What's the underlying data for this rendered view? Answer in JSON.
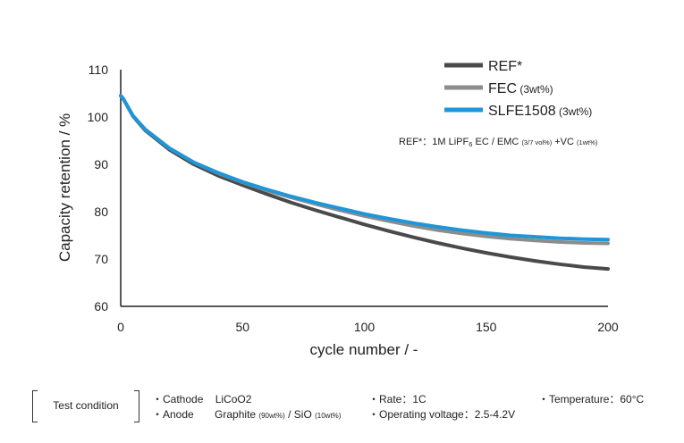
{
  "chart_data": {
    "type": "line",
    "xlabel": "cycle number / -",
    "ylabel": "Capacity retention / %",
    "xlim": [
      0,
      200
    ],
    "ylim": [
      60,
      110
    ],
    "xticks": [
      "0",
      "50",
      "100",
      "150",
      "200"
    ],
    "yticks": [
      "60",
      "70",
      "80",
      "90",
      "100",
      "110"
    ],
    "grid": false,
    "legend_position": "top-right",
    "series": [
      {
        "name": "REF*",
        "name_suffix": "",
        "color": "#4a4a4a",
        "x": [
          0,
          1,
          5,
          10,
          20,
          30,
          40,
          50,
          60,
          70,
          80,
          90,
          100,
          110,
          120,
          130,
          140,
          150,
          160,
          170,
          180,
          190,
          200
        ],
        "y": [
          104.5,
          103.9,
          100.2,
          97.2,
          93.1,
          90.0,
          87.6,
          85.6,
          83.7,
          81.9,
          80.3,
          78.8,
          77.3,
          75.9,
          74.6,
          73.4,
          72.3,
          71.3,
          70.4,
          69.6,
          68.9,
          68.3,
          67.9
        ]
      },
      {
        "name": "FEC",
        "name_suffix": "(3wt%)",
        "color": "#8c8c8c",
        "x": [
          0,
          1,
          5,
          10,
          20,
          30,
          40,
          50,
          60,
          70,
          80,
          90,
          100,
          110,
          120,
          130,
          140,
          150,
          160,
          170,
          180,
          190,
          200
        ],
        "y": [
          104.5,
          103.9,
          100.3,
          97.4,
          93.4,
          90.4,
          88.1,
          86.2,
          84.5,
          83.0,
          81.6,
          80.3,
          79.1,
          78.0,
          77.0,
          76.1,
          75.4,
          74.8,
          74.3,
          73.9,
          73.6,
          73.4,
          73.3
        ]
      },
      {
        "name": "SLFE1508",
        "name_suffix": "(3wt%)",
        "color": "#1e96d8",
        "x": [
          0,
          1,
          5,
          10,
          20,
          30,
          40,
          50,
          60,
          70,
          80,
          90,
          100,
          110,
          120,
          130,
          140,
          150,
          160,
          170,
          180,
          190,
          200
        ],
        "y": [
          104.5,
          103.9,
          100.3,
          97.4,
          93.4,
          90.4,
          88.2,
          86.3,
          84.7,
          83.2,
          81.9,
          80.7,
          79.5,
          78.5,
          77.6,
          76.8,
          76.1,
          75.5,
          75.0,
          74.7,
          74.4,
          74.2,
          74.1
        ]
      }
    ],
    "legend_note": {
      "prefix": "REF*：1M LiPF",
      "sub": "6",
      "mid": " EC / EMC ",
      "small1": "(3/7 vol%)",
      "after": " +VC ",
      "small2": "(1wt%)"
    }
  },
  "test_condition": {
    "title": "Test condition",
    "cathode_label": "・Cathode",
    "cathode_value": "LiCoO2",
    "anode_label": "・Anode",
    "anode_value": "Graphite",
    "anode_value_small1": "(90wt%)",
    "anode_value_mid": " / SiO ",
    "anode_value_small2": "(10wt%)",
    "rate": "・Rate：1C",
    "operating_voltage": "・Operating voltage：2.5-4.2V",
    "temperature": "・Temperature：60°C"
  }
}
